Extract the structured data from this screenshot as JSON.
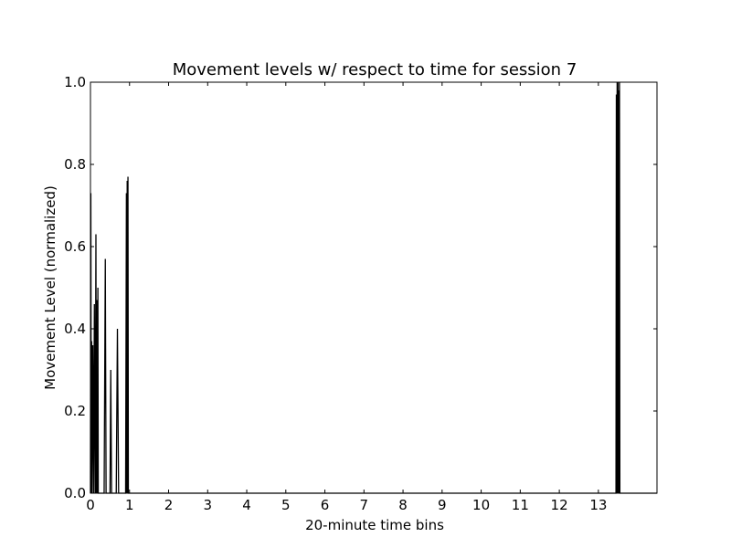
{
  "chart_data": {
    "type": "line",
    "title": "Movement levels w/ respect to time for session 7",
    "xlabel": "20-minute time bins",
    "ylabel": "Movement Level (normalized)",
    "xlim": [
      0,
      14.5
    ],
    "ylim": [
      0.0,
      1.0
    ],
    "x_ticks": [
      0,
      1,
      2,
      3,
      4,
      5,
      6,
      7,
      8,
      9,
      10,
      11,
      12,
      13
    ],
    "x_tick_labels": [
      "0",
      "1",
      "2",
      "3",
      "4",
      "5",
      "6",
      "7",
      "8",
      "9",
      "10",
      "11",
      "12",
      "13"
    ],
    "y_ticks": [
      0.0,
      0.2,
      0.4,
      0.6,
      0.8,
      1.0
    ],
    "y_tick_labels": [
      "0.0",
      "0.2",
      "0.4",
      "0.6",
      "0.8",
      "1.0"
    ],
    "grid": false,
    "line_color": "#000000",
    "series": [
      {
        "x": [
          0.0,
          0.01,
          0.02,
          0.03,
          0.04,
          0.06,
          0.08,
          0.1,
          0.12,
          0.14,
          0.15,
          0.16,
          0.18,
          0.19,
          0.2,
          0.22,
          0.35,
          0.38,
          0.4,
          0.5,
          0.52,
          0.54,
          0.66,
          0.69,
          0.72,
          0.9,
          0.92,
          0.93,
          0.94,
          0.95,
          0.96,
          0.97,
          0.98,
          13.45,
          13.46,
          13.47,
          13.48,
          13.49,
          13.5,
          13.51,
          13.52,
          13.53,
          13.54,
          13.55,
          14.5
        ],
        "y": [
          0.0,
          0.73,
          0.0,
          0.37,
          0.0,
          0.36,
          0.0,
          0.46,
          0.0,
          0.63,
          0.0,
          0.47,
          0.0,
          0.5,
          0.0,
          0.0,
          0.0,
          0.57,
          0.0,
          0.0,
          0.3,
          0.0,
          0.0,
          0.4,
          0.0,
          0.0,
          0.73,
          0.0,
          0.76,
          0.0,
          0.77,
          0.0,
          0.0,
          0.0,
          0.97,
          0.0,
          1.0,
          0.0,
          1.0,
          0.0,
          0.98,
          0.0,
          1.0,
          0.0,
          0.0
        ]
      }
    ]
  }
}
